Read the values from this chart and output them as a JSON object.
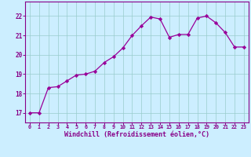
{
  "x": [
    0,
    1,
    2,
    3,
    4,
    5,
    6,
    7,
    8,
    9,
    10,
    11,
    12,
    13,
    14,
    15,
    16,
    17,
    18,
    19,
    20,
    21,
    22,
    23
  ],
  "y": [
    17.0,
    17.0,
    18.3,
    18.35,
    18.65,
    18.95,
    19.0,
    19.15,
    19.6,
    19.9,
    20.35,
    21.0,
    21.5,
    21.95,
    21.85,
    20.9,
    21.05,
    21.05,
    21.9,
    22.0,
    21.65,
    21.15,
    20.4,
    20.4
  ],
  "line_color": "#990099",
  "marker_color": "#990099",
  "bg_color": "#cceeff",
  "grid_color": "#99cccc",
  "xlabel": "Windchill (Refroidissement éolien,°C)",
  "xlim": [
    -0.5,
    23.5
  ],
  "ylim": [
    16.5,
    22.75
  ],
  "yticks": [
    17,
    18,
    19,
    20,
    21,
    22
  ],
  "xticks": [
    0,
    1,
    2,
    3,
    4,
    5,
    6,
    7,
    8,
    9,
    10,
    11,
    12,
    13,
    14,
    15,
    16,
    17,
    18,
    19,
    20,
    21,
    22,
    23
  ],
  "text_color": "#880088",
  "axis_color": "#880088"
}
